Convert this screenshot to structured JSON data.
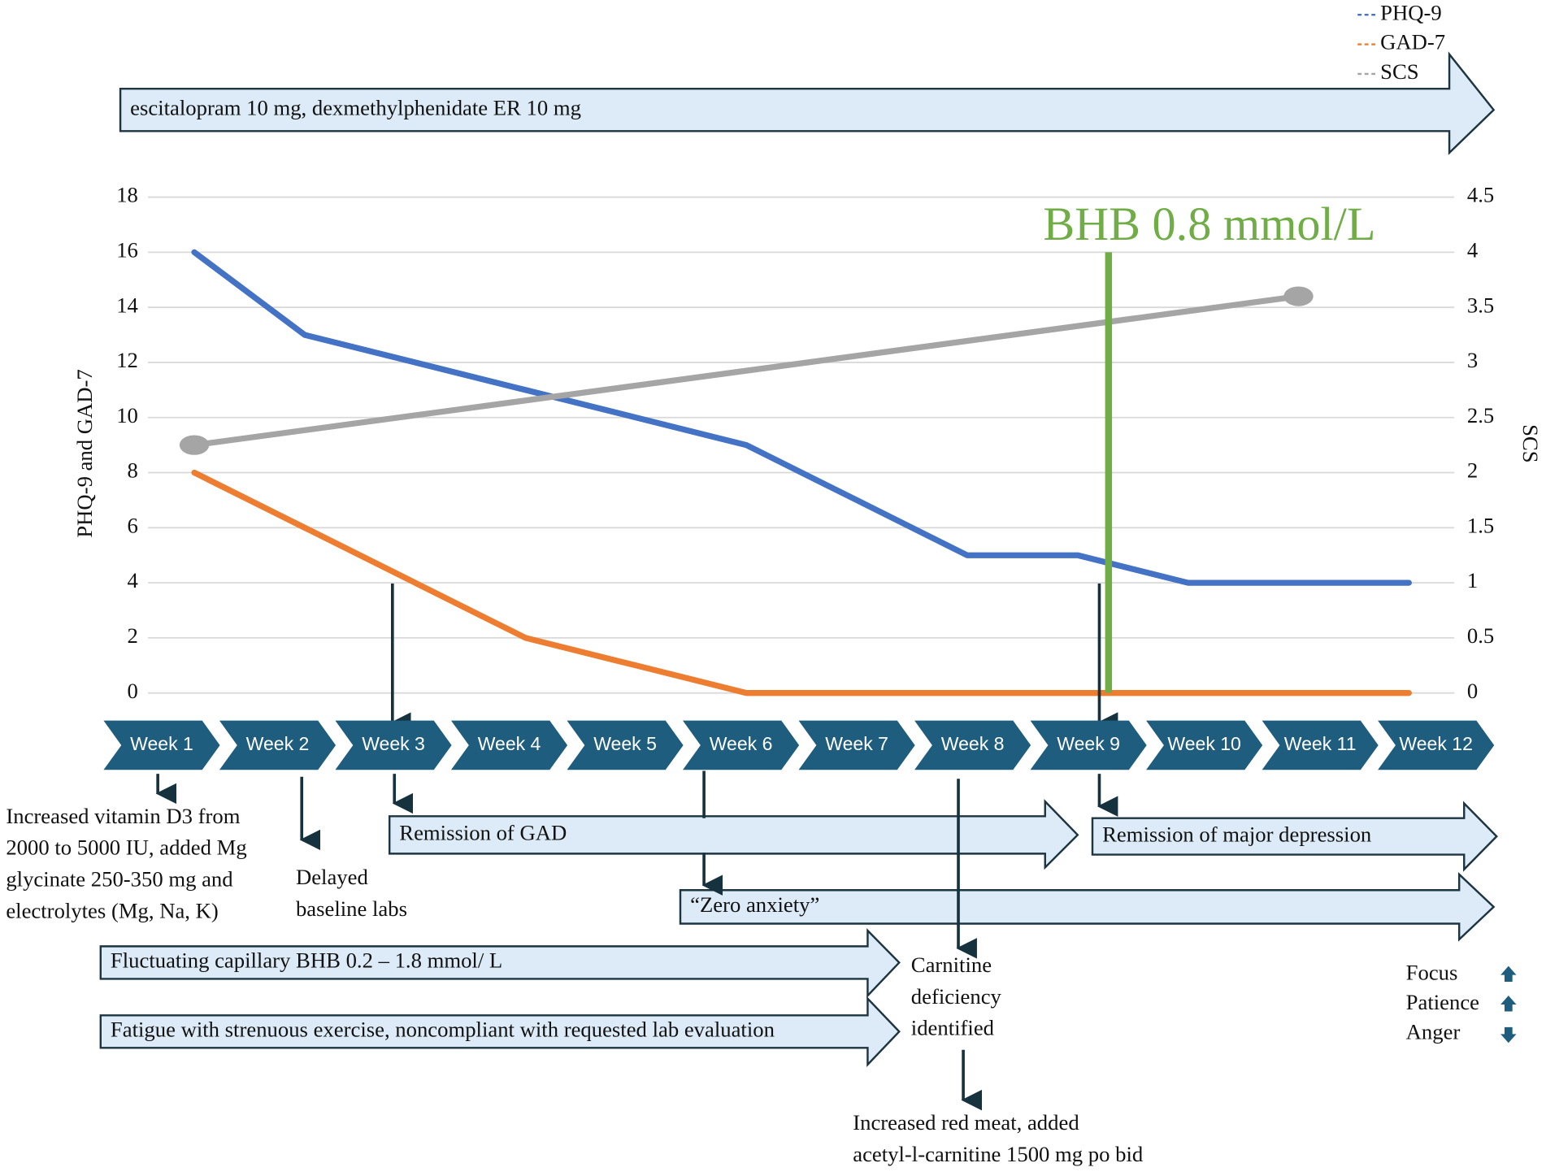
{
  "chart_data": {
    "type": "line",
    "categories": [
      "Week 1",
      "Week 2",
      "Week 3",
      "Week 4",
      "Week 5",
      "Week 6",
      "Week 7",
      "Week 8",
      "Week 9",
      "Week 10",
      "Week 11",
      "Week 12"
    ],
    "y_label": "PHQ-9 and GAD-7",
    "y2_label": "SCS",
    "ylim": [
      0,
      18
    ],
    "yticks": [
      0,
      2,
      4,
      6,
      8,
      10,
      12,
      14,
      16,
      18
    ],
    "y2lim": [
      0,
      4.5
    ],
    "y2ticks": [
      0,
      0.5,
      1,
      1.5,
      2,
      2.5,
      3,
      3.5,
      4,
      4.5
    ],
    "grid": true,
    "legend": "top-right",
    "series": [
      {
        "name": "PHQ-9",
        "color": "#4472c4",
        "values": [
          16,
          13,
          12,
          11,
          10,
          9,
          7,
          5,
          5,
          4,
          4,
          4
        ]
      },
      {
        "name": "GAD-7",
        "color": "#ed7d31",
        "values": [
          8,
          6,
          4,
          2,
          1,
          0,
          0,
          0,
          0,
          0,
          0,
          0
        ]
      },
      {
        "name": "SCS",
        "color": "#a5a5a5",
        "axis": "y2",
        "x": [
          1,
          11
        ],
        "values": [
          2.25,
          3.6
        ]
      }
    ],
    "marker_line": {
      "label": "BHB 0.8 mmol/L",
      "x": 9.28,
      "value": 16,
      "color": "#70ad47"
    }
  },
  "timeline": {
    "arrows": [
      "escitalopram 10 mg, dexmethylphenidate ER 10 mg",
      "Remission of GAD",
      "Remission of major depression",
      "“Zero anxiety”",
      "Fluctuating capillary BHB 0.2 – 1.8 mmol/ L",
      "Fatigue with strenuous exercise, noncompliant with requested lab evaluation"
    ],
    "notes": [
      [
        "Increased vitamin D3 from",
        "2000 to 5000 IU, added Mg",
        "glycinate 250-350 mg and",
        "electrolytes (Mg, Na, K)"
      ],
      [
        "Delayed",
        "baseline labs"
      ],
      [
        "Carnitine",
        "deficiency",
        "identified"
      ],
      [
        "Increased red meat, added",
        "acetyl-l-carnitine 1500 mg po bid"
      ]
    ],
    "effects": [
      "Focus",
      "Patience",
      "Anger"
    ]
  }
}
